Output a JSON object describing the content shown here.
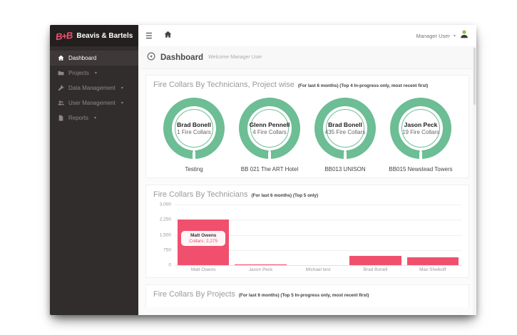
{
  "sidebar": {
    "brand_logo": "B+B",
    "brand_name": "Beavis & Bartels",
    "items": [
      {
        "id": "dashboard",
        "label": "Dashboard",
        "icon": "home-icon",
        "active": true,
        "caret": false
      },
      {
        "id": "projects",
        "label": "Projects",
        "icon": "folder-icon",
        "active": false,
        "caret": true
      },
      {
        "id": "data-management",
        "label": "Data Management",
        "icon": "wrench-icon",
        "active": false,
        "caret": true
      },
      {
        "id": "user-management",
        "label": "User Management",
        "icon": "users-icon",
        "active": false,
        "caret": true
      },
      {
        "id": "reports",
        "label": "Reports",
        "icon": "file-icon",
        "active": false,
        "caret": true
      }
    ]
  },
  "topbar": {
    "hamburger": "☰",
    "user_label": "Manager User",
    "user_caret": "▾"
  },
  "header": {
    "title": "Dashboard",
    "subtitle": "Welcome Manager User"
  },
  "sections": {
    "technicians_projectwise": {
      "title": "Fire Collars By Technicians, Project wise",
      "note": "(For last 6 months) (Top 4 In-progress only, most recent first)",
      "donuts": [
        {
          "name": "Brad Bonell",
          "value_label": "1 Fire Collars",
          "project": "Testing"
        },
        {
          "name": "Glenn Pennell",
          "value_label": "4 Fire Collars",
          "project": "BB 021 The ART Hotel"
        },
        {
          "name": "Brad Bonell",
          "value_label": "435 Fire Collars",
          "project": "BB013 UNISON"
        },
        {
          "name": "Jason Peck",
          "value_label": "19 Fire Collars",
          "project": "BB015 Newstead Towers"
        }
      ]
    },
    "technicians_chart": {
      "title": "Fire Collars By Technicians",
      "note": "(For last 6 months) (Top 5 only)"
    },
    "projects_chart": {
      "title": "Fire Collars By Projects",
      "note": "(For last 6 months) (Top 5 In-progress only, most recent first)"
    }
  },
  "chart_data": {
    "type": "bar",
    "categories": [
      "Matt Owens",
      "Jason Peck",
      "Michael test",
      "Brad Bonell",
      "Max Shelkoff"
    ],
    "values": [
      2275,
      50,
      0,
      450,
      400
    ],
    "ytick_labels": [
      "3,000",
      "2,250",
      "1,500",
      "750",
      "0"
    ],
    "ytick_values": [
      3000,
      2250,
      1500,
      750,
      0
    ],
    "ylim": [
      0,
      3000
    ],
    "bar_color": "#f0506e",
    "tooltip": {
      "slot": 0,
      "title": "Matt Owens",
      "value_label": "Collars: 2,275"
    }
  },
  "colors": {
    "accent_pink": "#f0506e",
    "donut_green": "#6dbd95",
    "sidebar_bg": "#322d2d"
  }
}
